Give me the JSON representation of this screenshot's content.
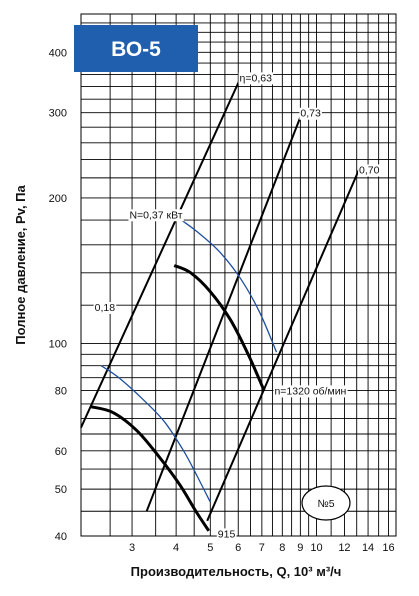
{
  "chart_data": {
    "type": "line",
    "badge": {
      "text": "ВО-5",
      "color": "#1f5fae"
    },
    "xlabel": "Производительность, Q, 10³ м³/ч",
    "ylabel": "Полное давление, Pv, Па",
    "x_scale": "log",
    "y_scale": "log",
    "xlim": [
      2.15,
      16.8
    ],
    "ylim": [
      40,
      480
    ],
    "x_ticks": [
      3,
      4,
      5,
      6,
      7,
      8,
      9,
      10,
      12,
      14,
      16
    ],
    "x_tick_labels": [
      "3",
      "4",
      "5",
      "6",
      "7",
      "8",
      "9",
      "10",
      "12",
      "14",
      "16"
    ],
    "y_ticks": [
      40,
      50,
      60,
      80,
      100,
      200,
      300,
      400
    ],
    "y_tick_labels": [
      "40",
      "50",
      "60",
      "80",
      "100",
      "200",
      "300",
      "400"
    ],
    "x_grid": [
      2.6,
      3,
      3.5,
      4,
      4.5,
      5,
      5.5,
      6,
      6.5,
      7,
      7.5,
      8,
      8.5,
      9,
      9.5,
      10,
      11,
      12,
      13,
      14,
      15,
      16
    ],
    "y_grid": [
      40,
      45,
      50,
      55,
      60,
      65,
      70,
      75,
      80,
      85,
      90,
      95,
      100,
      120,
      140,
      160,
      180,
      200,
      220,
      240,
      260,
      280,
      300,
      320,
      340,
      360,
      380,
      400,
      420,
      440,
      460
    ],
    "efficiency_lines": [
      {
        "label": "η=0,63",
        "points": [
          [
            2.15,
            67
          ],
          [
            6.1,
            355
          ]
        ]
      },
      {
        "label": "0,73",
        "points": [
          [
            3.3,
            45
          ],
          [
            9.1,
            300
          ]
        ]
      },
      {
        "label": "0,70",
        "points": [
          [
            4.9,
            43
          ],
          [
            13.2,
            229
          ]
        ]
      }
    ],
    "power_curves": [
      {
        "label": "N=0,37 кВт",
        "color": "#1f4fa0",
        "points": [
          [
            4.14,
            180
          ],
          [
            4.6,
            170
          ],
          [
            5.3,
            155
          ],
          [
            6.1,
            136
          ],
          [
            6.9,
            116
          ],
          [
            7.7,
            96
          ]
        ]
      },
      {
        "label": "0,18",
        "color": "#1f4fa0",
        "points": [
          [
            2.45,
            90
          ],
          [
            2.75,
            85
          ],
          [
            3.2,
            77
          ],
          [
            3.7,
            69
          ],
          [
            4.2,
            60
          ],
          [
            4.6,
            53
          ],
          [
            5.0,
            47
          ]
        ]
      }
    ],
    "fan_curves": [
      {
        "label": "n=1320 об/мин",
        "color": "#000000",
        "points": [
          [
            3.95,
            145
          ],
          [
            4.4,
            140
          ],
          [
            5.0,
            128
          ],
          [
            5.7,
            112
          ],
          [
            6.4,
            95
          ],
          [
            7.1,
            80
          ]
        ]
      },
      {
        "label": "915",
        "color": "#000000",
        "points": [
          [
            2.3,
            74
          ],
          [
            2.65,
            72
          ],
          [
            3.1,
            66
          ],
          [
            3.6,
            58
          ],
          [
            4.1,
            51
          ],
          [
            4.55,
            45
          ],
          [
            4.95,
            41
          ]
        ]
      }
    ],
    "labels": [
      {
        "text": "η=0,63",
        "anchor": [
          6.05,
          355
        ]
      },
      {
        "text": "0,73",
        "anchor": [
          9.0,
          300
        ]
      },
      {
        "text": "0,70",
        "anchor": [
          13.2,
          229
        ]
      },
      {
        "text": "N=0,37 кВт",
        "anchor": [
          2.95,
          185
        ]
      },
      {
        "text": "0,18",
        "anchor": [
          2.35,
          119
        ]
      },
      {
        "text": "n=1320 об/мин",
        "anchor": [
          7.6,
          80
        ]
      },
      {
        "text": "915",
        "anchor": [
          5.25,
          40.5
        ]
      }
    ],
    "annotation": {
      "text": "№5"
    }
  }
}
